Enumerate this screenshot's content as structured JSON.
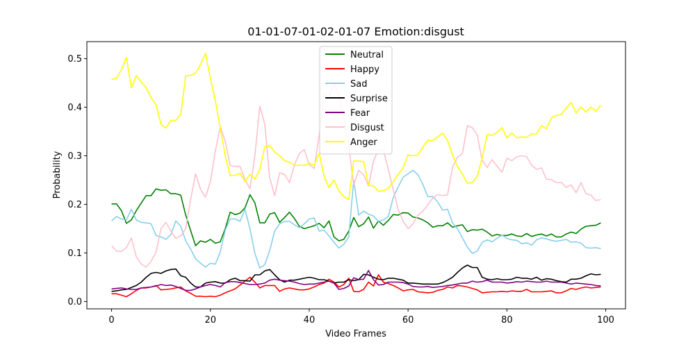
{
  "chart_data": {
    "type": "line",
    "title": "01-01-07-01-02-01-07 Emotion:disgust",
    "xlabel": "Video Frames",
    "ylabel": "Probability",
    "xlim": [
      -5,
      104
    ],
    "ylim": [
      -0.015,
      0.535
    ],
    "xticks": [
      0,
      20,
      40,
      60,
      80,
      100
    ],
    "yticks": [
      0.0,
      0.1,
      0.2,
      0.3,
      0.4,
      0.5
    ],
    "ytick_labels": [
      "0.0",
      "0.1",
      "0.2",
      "0.3",
      "0.4",
      "0.5"
    ],
    "grid": false,
    "legend_position": "upper center",
    "series": [
      {
        "name": "Neutral",
        "color": "#008000",
        "values": [
          0.201,
          0.201,
          0.187,
          0.161,
          0.168,
          0.187,
          0.203,
          0.218,
          0.218,
          0.232,
          0.229,
          0.23,
          0.222,
          0.222,
          0.219,
          0.178,
          0.146,
          0.115,
          0.125,
          0.122,
          0.128,
          0.12,
          0.123,
          0.15,
          0.184,
          0.179,
          0.182,
          0.193,
          0.22,
          0.203,
          0.162,
          0.162,
          0.18,
          0.183,
          0.163,
          0.173,
          0.184,
          0.171,
          0.155,
          0.15,
          0.153,
          0.156,
          0.161,
          0.152,
          0.166,
          0.133,
          0.125,
          0.128,
          0.145,
          0.173,
          0.154,
          0.16,
          0.174,
          0.151,
          0.166,
          0.157,
          0.167,
          0.179,
          0.178,
          0.183,
          0.182,
          0.174,
          0.172,
          0.168,
          0.162,
          0.153,
          0.156,
          0.156,
          0.162,
          0.153,
          0.156,
          0.158,
          0.144,
          0.148,
          0.147,
          0.149,
          0.143,
          0.135,
          0.138,
          0.136,
          0.136,
          0.139,
          0.135,
          0.134,
          0.14,
          0.134,
          0.137,
          0.139,
          0.135,
          0.139,
          0.133,
          0.133,
          0.139,
          0.143,
          0.14,
          0.149,
          0.155,
          0.156,
          0.157,
          0.162
        ]
      },
      {
        "name": "Happy",
        "color": "#ff0000",
        "values": [
          0.016,
          0.016,
          0.013,
          0.01,
          0.016,
          0.023,
          0.028,
          0.028,
          0.03,
          0.033,
          0.024,
          0.025,
          0.026,
          0.028,
          0.03,
          0.022,
          0.017,
          0.011,
          0.011,
          0.01,
          0.011,
          0.01,
          0.013,
          0.018,
          0.022,
          0.026,
          0.034,
          0.042,
          0.05,
          0.04,
          0.028,
          0.033,
          0.033,
          0.033,
          0.021,
          0.026,
          0.028,
          0.026,
          0.024,
          0.024,
          0.026,
          0.03,
          0.035,
          0.038,
          0.046,
          0.04,
          0.03,
          0.035,
          0.048,
          0.021,
          0.02,
          0.025,
          0.04,
          0.032,
          0.055,
          0.04,
          0.037,
          0.033,
          0.028,
          0.022,
          0.024,
          0.025,
          0.02,
          0.019,
          0.018,
          0.019,
          0.023,
          0.025,
          0.03,
          0.028,
          0.033,
          0.032,
          0.03,
          0.027,
          0.024,
          0.018,
          0.019,
          0.02,
          0.02,
          0.021,
          0.02,
          0.022,
          0.021,
          0.021,
          0.025,
          0.02,
          0.02,
          0.02,
          0.021,
          0.022,
          0.018,
          0.018,
          0.022,
          0.027,
          0.025,
          0.028,
          0.03,
          0.028,
          0.029,
          0.03
        ]
      },
      {
        "name": "Sad",
        "color": "#87ceeb",
        "values": [
          0.166,
          0.175,
          0.17,
          0.168,
          0.19,
          0.168,
          0.163,
          0.162,
          0.16,
          0.136,
          0.133,
          0.128,
          0.138,
          0.166,
          0.155,
          0.125,
          0.108,
          0.088,
          0.079,
          0.071,
          0.079,
          0.077,
          0.102,
          0.147,
          0.17,
          0.17,
          0.165,
          0.19,
          0.15,
          0.099,
          0.069,
          0.076,
          0.105,
          0.145,
          0.16,
          0.165,
          0.165,
          0.158,
          0.152,
          0.16,
          0.17,
          0.172,
          0.145,
          0.147,
          0.135,
          0.122,
          0.11,
          0.118,
          0.133,
          0.25,
          0.178,
          0.186,
          0.18,
          0.176,
          0.165,
          0.168,
          0.175,
          0.214,
          0.236,
          0.256,
          0.263,
          0.27,
          0.261,
          0.241,
          0.216,
          0.216,
          0.205,
          0.188,
          0.19,
          0.162,
          0.15,
          0.131,
          0.112,
          0.099,
          0.104,
          0.122,
          0.127,
          0.123,
          0.13,
          0.137,
          0.13,
          0.127,
          0.126,
          0.119,
          0.121,
          0.116,
          0.127,
          0.131,
          0.129,
          0.126,
          0.124,
          0.126,
          0.128,
          0.122,
          0.123,
          0.12,
          0.111,
          0.11,
          0.111,
          0.109
        ]
      },
      {
        "name": "Surprise",
        "color": "#000000",
        "values": [
          0.021,
          0.022,
          0.024,
          0.025,
          0.029,
          0.033,
          0.04,
          0.05,
          0.058,
          0.06,
          0.058,
          0.063,
          0.066,
          0.067,
          0.053,
          0.05,
          0.038,
          0.03,
          0.03,
          0.038,
          0.04,
          0.041,
          0.038,
          0.038,
          0.045,
          0.048,
          0.043,
          0.043,
          0.042,
          0.055,
          0.055,
          0.063,
          0.066,
          0.055,
          0.045,
          0.04,
          0.044,
          0.044,
          0.046,
          0.048,
          0.05,
          0.048,
          0.045,
          0.045,
          0.042,
          0.038,
          0.04,
          0.04,
          0.045,
          0.043,
          0.045,
          0.056,
          0.055,
          0.05,
          0.046,
          0.045,
          0.048,
          0.048,
          0.046,
          0.044,
          0.038,
          0.038,
          0.037,
          0.036,
          0.036,
          0.036,
          0.036,
          0.039,
          0.044,
          0.05,
          0.06,
          0.069,
          0.075,
          0.07,
          0.07,
          0.05,
          0.046,
          0.045,
          0.047,
          0.045,
          0.045,
          0.046,
          0.05,
          0.048,
          0.048,
          0.046,
          0.05,
          0.044,
          0.047,
          0.046,
          0.043,
          0.041,
          0.04,
          0.046,
          0.046,
          0.048,
          0.053,
          0.057,
          0.055,
          0.056
        ]
      },
      {
        "name": "Fear",
        "color": "#800080",
        "values": [
          0.026,
          0.027,
          0.028,
          0.026,
          0.025,
          0.025,
          0.028,
          0.029,
          0.03,
          0.032,
          0.035,
          0.033,
          0.034,
          0.031,
          0.027,
          0.023,
          0.023,
          0.026,
          0.03,
          0.033,
          0.035,
          0.033,
          0.03,
          0.039,
          0.041,
          0.041,
          0.039,
          0.037,
          0.035,
          0.035,
          0.036,
          0.038,
          0.044,
          0.046,
          0.044,
          0.043,
          0.042,
          0.04,
          0.037,
          0.035,
          0.036,
          0.036,
          0.038,
          0.04,
          0.042,
          0.038,
          0.025,
          0.027,
          0.032,
          0.049,
          0.045,
          0.046,
          0.064,
          0.045,
          0.034,
          0.035,
          0.04,
          0.04,
          0.04,
          0.039,
          0.036,
          0.031,
          0.03,
          0.03,
          0.031,
          0.029,
          0.03,
          0.031,
          0.033,
          0.034,
          0.036,
          0.038,
          0.038,
          0.042,
          0.04,
          0.041,
          0.044,
          0.04,
          0.04,
          0.04,
          0.038,
          0.039,
          0.041,
          0.04,
          0.042,
          0.041,
          0.04,
          0.04,
          0.042,
          0.04,
          0.04,
          0.04,
          0.038,
          0.036,
          0.038,
          0.037,
          0.036,
          0.035,
          0.033,
          0.032
        ]
      },
      {
        "name": "Disgust",
        "color": "#ffc0cb",
        "values": [
          0.115,
          0.104,
          0.103,
          0.111,
          0.131,
          0.092,
          0.077,
          0.071,
          0.083,
          0.102,
          0.15,
          0.163,
          0.145,
          0.13,
          0.135,
          0.15,
          0.21,
          0.263,
          0.231,
          0.215,
          0.247,
          0.31,
          0.36,
          0.33,
          0.28,
          0.278,
          0.278,
          0.251,
          0.232,
          0.3,
          0.402,
          0.365,
          0.255,
          0.218,
          0.265,
          0.262,
          0.245,
          0.281,
          0.305,
          0.313,
          0.282,
          0.274,
          0.342,
          0.428,
          0.422,
          0.448,
          0.424,
          0.378,
          0.32,
          0.24,
          0.27,
          0.261,
          0.238,
          0.289,
          0.314,
          0.312,
          0.272,
          0.23,
          0.19,
          0.165,
          0.15,
          0.16,
          0.178,
          0.186,
          0.199,
          0.213,
          0.22,
          0.218,
          0.22,
          0.277,
          0.297,
          0.305,
          0.362,
          0.358,
          0.343,
          0.29,
          0.276,
          0.292,
          0.279,
          0.266,
          0.295,
          0.29,
          0.298,
          0.3,
          0.298,
          0.281,
          0.272,
          0.275,
          0.252,
          0.251,
          0.245,
          0.245,
          0.235,
          0.24,
          0.224,
          0.245,
          0.222,
          0.219,
          0.208,
          0.21
        ]
      },
      {
        "name": "Anger",
        "color": "#ffff00",
        "values": [
          0.457,
          0.46,
          0.477,
          0.502,
          0.44,
          0.465,
          0.452,
          0.44,
          0.42,
          0.405,
          0.365,
          0.357,
          0.373,
          0.373,
          0.385,
          0.465,
          0.465,
          0.47,
          0.488,
          0.511,
          0.46,
          0.413,
          0.357,
          0.3,
          0.259,
          0.26,
          0.264,
          0.247,
          0.262,
          0.252,
          0.272,
          0.318,
          0.321,
          0.308,
          0.3,
          0.29,
          0.287,
          0.28,
          0.281,
          0.28,
          0.285,
          0.28,
          0.305,
          0.258,
          0.235,
          0.25,
          0.228,
          0.216,
          0.21,
          0.29,
          0.289,
          0.288,
          0.24,
          0.238,
          0.227,
          0.228,
          0.233,
          0.247,
          0.262,
          0.275,
          0.302,
          0.3,
          0.302,
          0.318,
          0.332,
          0.331,
          0.339,
          0.347,
          0.331,
          0.302,
          0.278,
          0.262,
          0.243,
          0.245,
          0.258,
          0.295,
          0.344,
          0.342,
          0.348,
          0.358,
          0.337,
          0.347,
          0.337,
          0.339,
          0.338,
          0.345,
          0.345,
          0.362,
          0.356,
          0.378,
          0.383,
          0.385,
          0.398,
          0.41,
          0.388,
          0.401,
          0.39,
          0.4,
          0.392,
          0.404
        ]
      }
    ]
  }
}
